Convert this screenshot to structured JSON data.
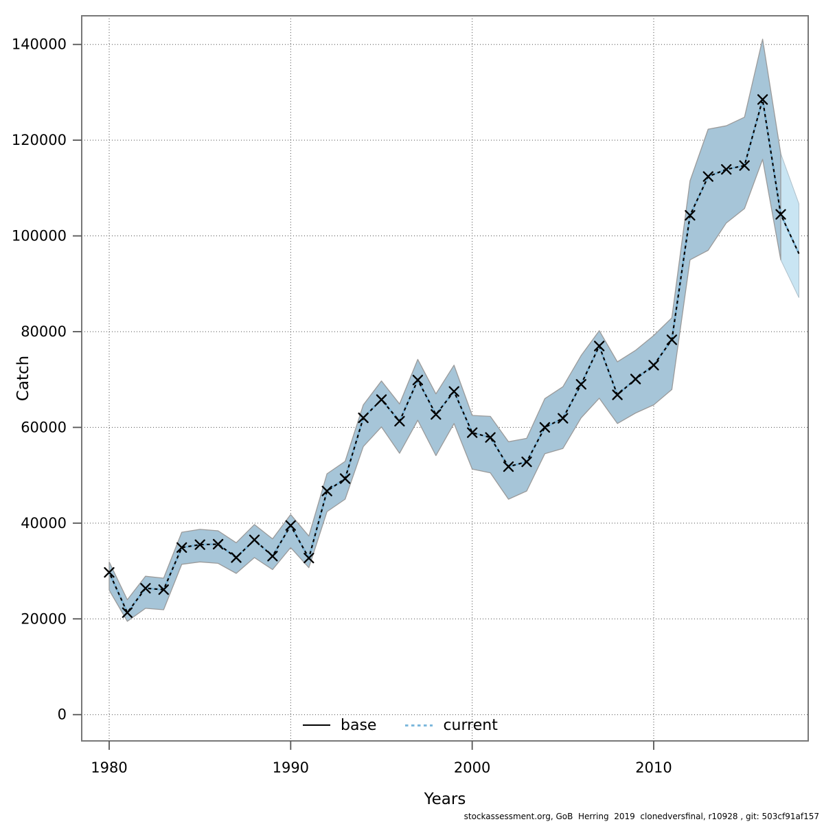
{
  "figure": {
    "background": "#ffffff",
    "caption": "stockassessment.org, GoB  Herring  2019  clonedversfinal, r10928 , git: 503cf91af157"
  },
  "chart_data": {
    "type": "line",
    "title": "",
    "xlabel": "Years",
    "ylabel": "Catch",
    "grid": true,
    "xlim": [
      1978.5,
      2018.5
    ],
    "ylim": [
      -5500,
      146000
    ],
    "x_ticks": [
      1980,
      1990,
      2000,
      2010
    ],
    "y_ticks": [
      0,
      20000,
      40000,
      60000,
      80000,
      100000,
      120000,
      140000
    ],
    "legend_position": "bottom-center-inside",
    "legend": [
      {
        "label": "base",
        "style": "solid",
        "color": "#000000"
      },
      {
        "label": "current",
        "style": "dotted",
        "color": "#7db8dc"
      }
    ],
    "x": [
      1980,
      1981,
      1982,
      1983,
      1984,
      1985,
      1986,
      1987,
      1988,
      1989,
      1990,
      1991,
      1992,
      1993,
      1994,
      1995,
      1996,
      1997,
      1998,
      1999,
      2000,
      2001,
      2002,
      2003,
      2004,
      2005,
      2006,
      2007,
      2008,
      2009,
      2010,
      2011,
      2012,
      2013,
      2014,
      2015,
      2016,
      2017,
      2018
    ],
    "series": [
      {
        "name": "base",
        "style": "solid",
        "color": "#000000",
        "values": [
          29700,
          21300,
          26400,
          26100,
          34900,
          35500,
          35600,
          32800,
          36500,
          33100,
          39500,
          32700,
          46700,
          49300,
          62000,
          65800,
          61300,
          69900,
          62700,
          67500,
          58900,
          57900,
          51800,
          52800,
          60000,
          61900,
          69000,
          77000,
          66800,
          70100,
          73000,
          78300,
          104300,
          112400,
          113900,
          114700,
          128500,
          104500,
          96300
        ]
      },
      {
        "name": "current",
        "style": "dotted",
        "color": "#7db8dc",
        "values": [
          29700,
          21300,
          26400,
          26100,
          34900,
          35500,
          35600,
          32800,
          36500,
          33100,
          39500,
          32700,
          46700,
          49300,
          62000,
          65800,
          61300,
          69900,
          62700,
          67500,
          58900,
          57900,
          51800,
          52800,
          60000,
          61900,
          69000,
          77000,
          66800,
          70100,
          73000,
          78300,
          104300,
          112400,
          113900,
          114700,
          128500,
          104500,
          96300
        ]
      }
    ],
    "markers": {
      "shape": "x",
      "color": "#000000",
      "years_with_marker": [
        1980,
        1981,
        1982,
        1983,
        1984,
        1985,
        1986,
        1987,
        1988,
        1989,
        1990,
        1991,
        1992,
        1993,
        1994,
        1995,
        1996,
        1997,
        1998,
        1999,
        2000,
        2001,
        2002,
        2003,
        2004,
        2005,
        2006,
        2007,
        2008,
        2009,
        2010,
        2011,
        2012,
        2013,
        2014,
        2015,
        2016,
        2017
      ]
    },
    "confidence_band": {
      "name": "base-ci",
      "fill": "#a6c5d8",
      "edge": "#9a9a9a",
      "years": [
        1980,
        1981,
        1982,
        1983,
        1984,
        1985,
        1986,
        1987,
        1988,
        1989,
        1990,
        1991,
        1992,
        1993,
        1994,
        1995,
        1996,
        1997,
        1998,
        1999,
        2000,
        2001,
        2002,
        2003,
        2004,
        2005,
        2006,
        2007,
        2008,
        2009,
        2010,
        2011,
        2012,
        2013,
        2014,
        2015,
        2016,
        2017
      ],
      "lo": [
        26000,
        19500,
        22200,
        21900,
        31400,
        31900,
        31600,
        29500,
        32800,
        30300,
        34900,
        30700,
        42400,
        45000,
        56000,
        60100,
        54600,
        61500,
        54100,
        60800,
        51300,
        50500,
        45000,
        46700,
        54500,
        55600,
        62000,
        66100,
        60800,
        63000,
        64700,
        67900,
        95000,
        97000,
        102700,
        105700,
        116000,
        95000
      ],
      "hi": [
        31900,
        24000,
        28900,
        28500,
        38100,
        38700,
        38400,
        35900,
        39700,
        36700,
        41800,
        37300,
        50300,
        52900,
        64700,
        69700,
        64900,
        74200,
        67000,
        73000,
        62500,
        62300,
        57000,
        57700,
        66000,
        68500,
        75000,
        80200,
        73700,
        76100,
        79200,
        82900,
        111500,
        122300,
        123000,
        124800,
        141100,
        117200
      ]
    },
    "forecast_band": {
      "name": "current-ci-extension",
      "fill": "#c9e5f3",
      "edge": "#aebfc9",
      "years": [
        2017,
        2018
      ],
      "lo": [
        95000,
        87100
      ],
      "hi": [
        117200,
        106700
      ]
    }
  },
  "style": {
    "plot_border_color": "#777777",
    "grid_color": "#4a4a4a",
    "tick_color": "#555555",
    "text_color": "#000000",
    "tick_font_px": 21
  }
}
